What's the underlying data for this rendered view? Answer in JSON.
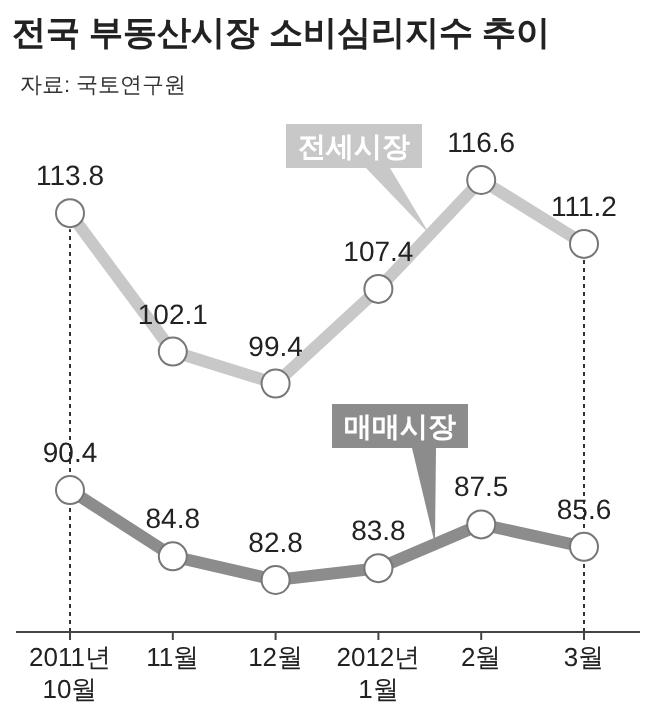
{
  "chart_data": {
    "type": "line",
    "title": "전국 부동산시장 소비심리지수 추이",
    "annotations": [
      "자료: 국토연구원"
    ],
    "categories": [
      "2011년 10월",
      "11월",
      "12월",
      "2012년 1월",
      "2월",
      "3월"
    ],
    "series": [
      {
        "name": "전세시장",
        "color": "#c8c8c8",
        "values": [
          113.8,
          102.1,
          99.4,
          107.4,
          116.6,
          111.2
        ]
      },
      {
        "name": "매매시장",
        "color": "#8c8c8c",
        "values": [
          90.4,
          84.8,
          82.8,
          83.8,
          87.5,
          85.6
        ]
      }
    ],
    "data_labels": true,
    "legend": false,
    "marker": "circle",
    "grid": false,
    "ref_lines": [
      {
        "axis": "x",
        "value": "2011년 10월",
        "line_style": "dotted",
        "color": "#333333"
      },
      {
        "axis": "x",
        "value": "3월",
        "line_style": "dotted",
        "color": "#333333"
      }
    ]
  }
}
